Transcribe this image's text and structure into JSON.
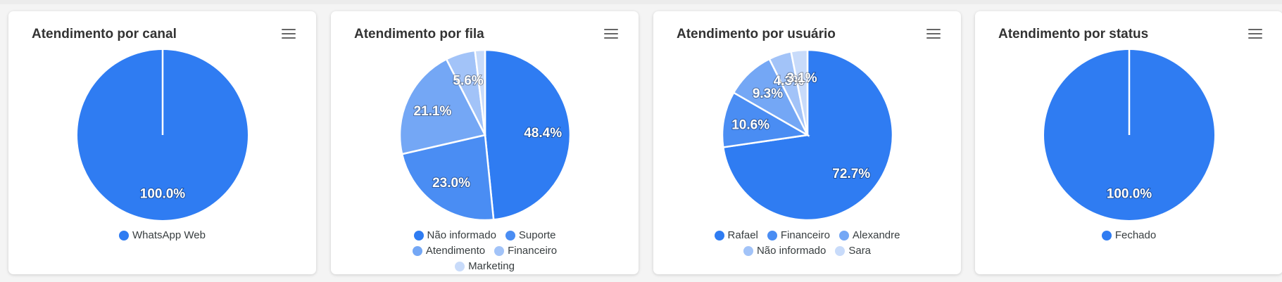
{
  "colors": [
    "#2f7cf2",
    "#4a8df3",
    "#74a7f5",
    "#a2c3f8",
    "#c8dbfa"
  ],
  "cards": [
    {
      "title": "Atendimento por canal"
    },
    {
      "title": "Atendimento por fila"
    },
    {
      "title": "Atendimento por usuário"
    },
    {
      "title": "Atendimento por status"
    }
  ],
  "chart_data": [
    {
      "type": "pie",
      "title": "Atendimento por canal",
      "labels": [
        "WhatsApp Web"
      ],
      "values": [
        100.0
      ],
      "data_labels": [
        "100.0%"
      ],
      "legend": "bottom"
    },
    {
      "type": "pie",
      "title": "Atendimento por fila",
      "labels": [
        "Não informado",
        "Suporte",
        "Atendimento",
        "Financeiro",
        "Marketing"
      ],
      "values": [
        48.4,
        23.0,
        21.1,
        5.6,
        1.9
      ],
      "data_labels": [
        "48.4%",
        "23.0%",
        "21.1%",
        "5.6%",
        ""
      ],
      "legend": "bottom"
    },
    {
      "type": "pie",
      "title": "Atendimento por usuário",
      "labels": [
        "Rafael",
        "Financeiro",
        "Alexandre",
        "Não informado",
        "Sara"
      ],
      "values": [
        72.7,
        10.6,
        9.3,
        4.3,
        3.1
      ],
      "data_labels": [
        "72.7%",
        "10.6%",
        "9.3%",
        "4.3%",
        "3.1%"
      ],
      "legend": "bottom"
    },
    {
      "type": "pie",
      "title": "Atendimento por status",
      "labels": [
        "Fechado"
      ],
      "values": [
        100.0
      ],
      "data_labels": [
        "100.0%"
      ],
      "legend": "bottom"
    }
  ]
}
